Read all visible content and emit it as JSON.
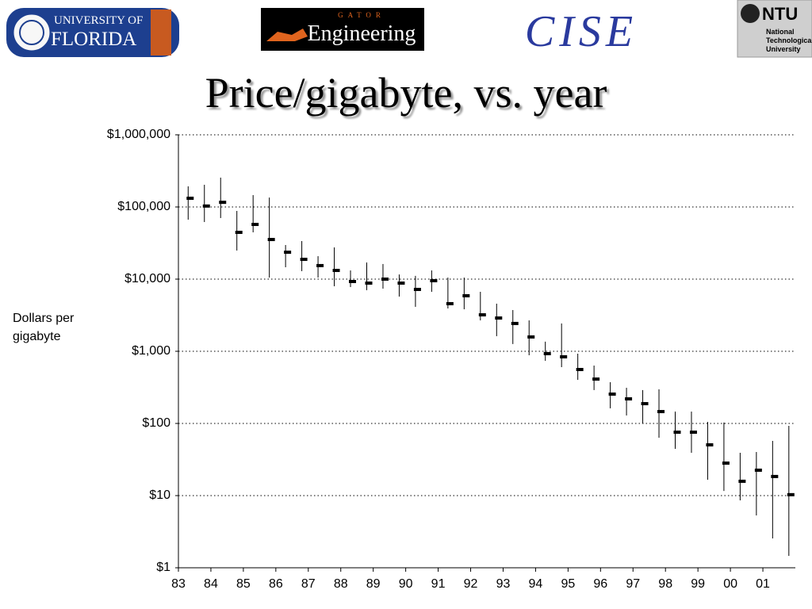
{
  "header": {
    "logos": {
      "uf": [
        "UNIVERSITY OF",
        "FLORIDA"
      ],
      "engineering": [
        "GATOR",
        "Engineering"
      ],
      "cise": "CISE",
      "ntu": [
        "NTU",
        "National",
        "Technological",
        "University"
      ]
    }
  },
  "chart_data": {
    "type": "range",
    "title": "Price/gigabyte, vs. year",
    "ylabel": "Dollars per gigabyte",
    "color": "#000000",
    "x": [
      83.3,
      83.8,
      84.3,
      84.8,
      85.3,
      85.8,
      86.3,
      86.8,
      87.3,
      87.8,
      88.3,
      88.8,
      89.3,
      89.8,
      90.3,
      90.8,
      91.3,
      91.8,
      92.3,
      92.8,
      93.3,
      93.8,
      94.3,
      94.8,
      95.3,
      95.8,
      96.3,
      96.8,
      97.3,
      97.8,
      98.3,
      98.8,
      99.3,
      99.8,
      100.3,
      100.8,
      101.3,
      101.8
    ],
    "values": [
      132000,
      103000,
      116000,
      44500,
      57300,
      35400,
      23600,
      18800,
      15400,
      13200,
      9270,
      8810,
      10000,
      8810,
      7200,
      9510,
      4570,
      5880,
      3200,
      2890,
      2430,
      1580,
      927,
      838,
      559,
      412,
      255,
      219,
      188,
      146,
      75.7,
      75.7,
      50.5,
      28.2,
      15.8,
      22.5,
      18.4,
      10.3
    ],
    "high": [
      193000,
      203000,
      255000,
      88100,
      146000,
      135000,
      29700,
      33700,
      20800,
      27500,
      13200,
      17000,
      16200,
      11600,
      11100,
      13200,
      10500,
      10500,
      6670,
      4570,
      3730,
      2680,
      1360,
      2430,
      927,
      634,
      373,
      312,
      290,
      297,
      146,
      146,
      105,
      103,
      39.2,
      40.2,
      57.3,
      92.7
    ],
    "low": [
      66700,
      61800,
      70200,
      24900,
      44500,
      10500,
      14600,
      12900,
      10500,
      7960,
      7760,
      7020,
      7380,
      5730,
      4130,
      6670,
      3920,
      3820,
      2680,
      1620,
      1260,
      881,
      738,
      603,
      402,
      290,
      162,
      129,
      100,
      63.4,
      44.5,
      39.2,
      16.6,
      11.6,
      8.59,
      5.31,
      2.55,
      1.46
    ],
    "xlim": [
      83,
      102
    ],
    "xticks": [
      83,
      84,
      85,
      86,
      87,
      88,
      89,
      90,
      91,
      92,
      93,
      94,
      95,
      96,
      97,
      98,
      99,
      {
        "value": 100,
        "label": "00"
      },
      {
        "value": 101,
        "label": "01"
      }
    ],
    "ylim": [
      1,
      1000000
    ],
    "ylog": true,
    "yticks": [
      {
        "value": 1,
        "label": "$1"
      },
      {
        "value": 10,
        "label": "$10"
      },
      {
        "value": 100,
        "label": "$100"
      },
      {
        "value": 1000,
        "label": "$1,000"
      },
      {
        "value": 10000,
        "label": "$10,000"
      },
      {
        "value": 100000,
        "label": "$100,000"
      },
      {
        "value": 1000000,
        "label": "$1,000,000"
      }
    ],
    "grid": true
  }
}
